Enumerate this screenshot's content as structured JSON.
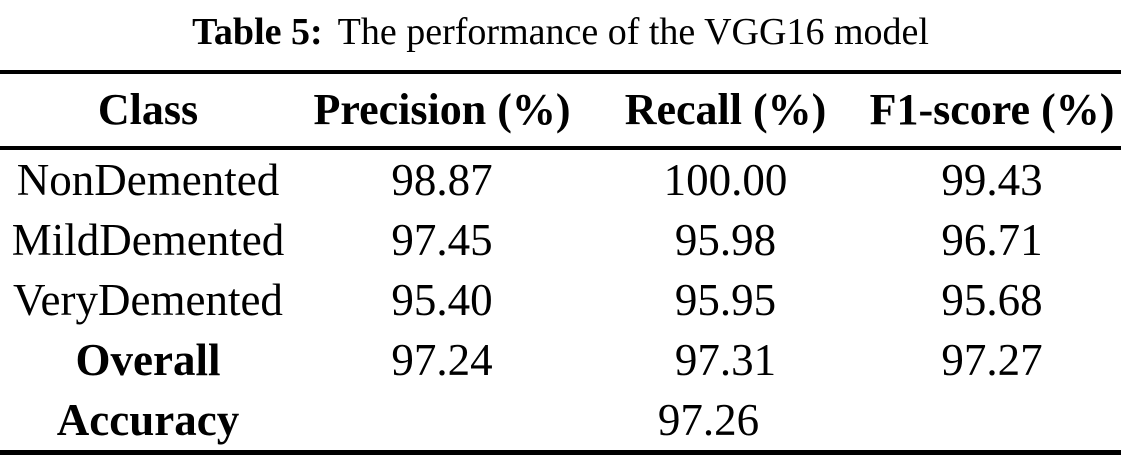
{
  "colors": {
    "text": "#000000",
    "background": "#ffffff",
    "rule": "#000000"
  },
  "caption": {
    "label": "Table 5:",
    "text": "The performance of the VGG16 model"
  },
  "table": {
    "columns": [
      "Class",
      "Precision (%)",
      "Recall (%)",
      "F1-score (%)"
    ],
    "rows": [
      {
        "label": "NonDemented",
        "precision": "98.87",
        "recall": "100.00",
        "f1": "99.43"
      },
      {
        "label": "MildDemented",
        "precision": "97.45",
        "recall": "95.98",
        "f1": "96.71"
      },
      {
        "label": "VeryDemented",
        "precision": "95.40",
        "recall": "95.95",
        "f1": "95.68"
      },
      {
        "label": "Overall",
        "precision": "97.24",
        "recall": "97.31",
        "f1": "97.27"
      }
    ],
    "accuracy": {
      "label": "Accuracy",
      "value": "97.26"
    }
  }
}
